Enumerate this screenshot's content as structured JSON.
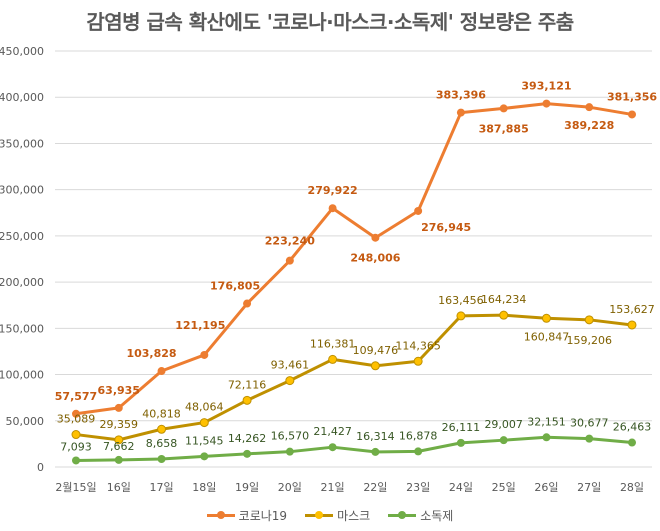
{
  "chart_data": {
    "type": "line",
    "title": "감염병 급속 확산에도 '코로나·마스크·소독제' 정보량은 주춤",
    "xlabel": "",
    "ylabel": "",
    "ylim": [
      0,
      450000
    ],
    "yticks": [
      0,
      50000,
      100000,
      150000,
      200000,
      250000,
      300000,
      350000,
      400000,
      450000
    ],
    "ytick_labels": [
      "0",
      "50,000",
      "100,000",
      "150,000",
      "200,000",
      "250,000",
      "300,000",
      "350,000",
      "400,000",
      "450,000"
    ],
    "grid": true,
    "legend_position": "bottom",
    "categories": [
      "2월15일",
      "16일",
      "17일",
      "18일",
      "19일",
      "20일",
      "21일",
      "22일",
      "23일",
      "24일",
      "25일",
      "26일",
      "27일",
      "28일"
    ],
    "series": [
      {
        "name": "코로나19",
        "color": "#ED7D31",
        "label_color": "#C55A11",
        "values": [
          57577,
          63935,
          103828,
          121195,
          176805,
          223240,
          279922,
          248006,
          276945,
          383396,
          387885,
          393121,
          389228,
          381356
        ],
        "labels": [
          "57,577",
          "63,935",
          "103,828",
          "121,195",
          "176,805",
          "223,240",
          "279,922",
          "248,006",
          "276,945",
          "383,396",
          "387,885",
          "393,121",
          "389,228",
          "381,356"
        ]
      },
      {
        "name": "마스크",
        "color": "#BF9000",
        "marker_color": "#FFC000",
        "label_color": "#7F6000",
        "values": [
          35089,
          29359,
          40818,
          48064,
          72116,
          93461,
          116381,
          109476,
          114365,
          163456,
          164234,
          160847,
          159206,
          153627
        ],
        "labels": [
          "35,089",
          "29,359",
          "40,818",
          "48,064",
          "72,116",
          "93,461",
          "116,381",
          "109,476",
          "114,365",
          "163,456",
          "164,234",
          "160,847",
          "159,206",
          "153,627"
        ]
      },
      {
        "name": "소독제",
        "color": "#70AD47",
        "label_color": "#375623",
        "values": [
          7093,
          7662,
          8658,
          11545,
          14262,
          16570,
          21427,
          16314,
          16878,
          26111,
          29007,
          32151,
          30677,
          26463
        ],
        "labels": [
          "7,093",
          "7,662",
          "8,658",
          "11,545",
          "14,262",
          "16,570",
          "21,427",
          "16,314",
          "16,878",
          "26,111",
          "29,007",
          "32,151",
          "30,677",
          "26,463"
        ]
      }
    ]
  }
}
